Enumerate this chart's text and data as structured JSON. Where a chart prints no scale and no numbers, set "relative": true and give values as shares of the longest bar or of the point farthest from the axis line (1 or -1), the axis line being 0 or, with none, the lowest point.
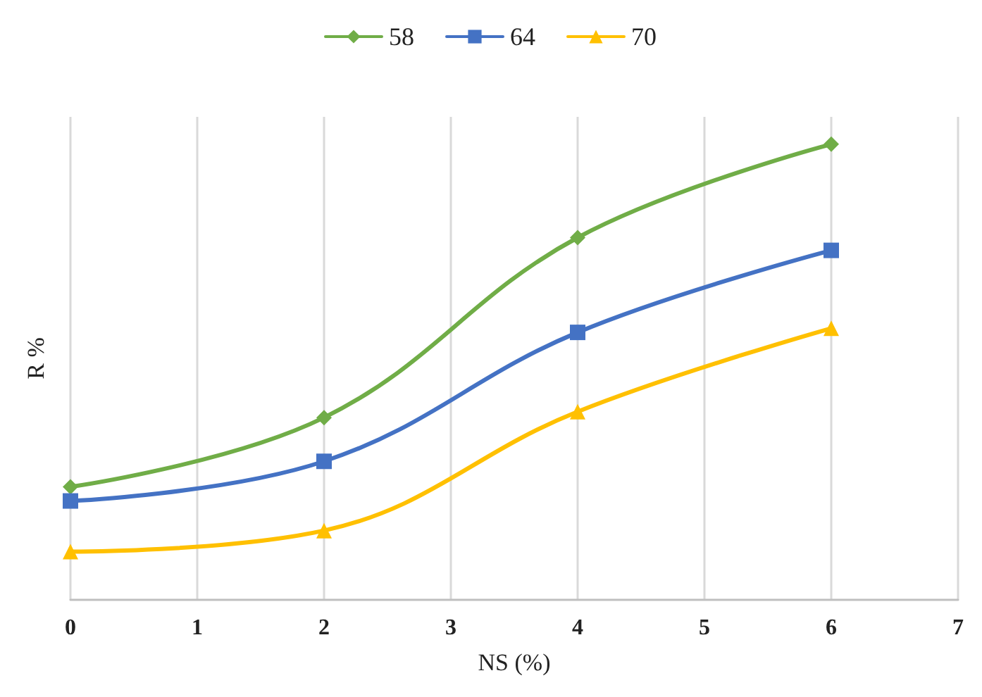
{
  "chart_data": {
    "type": "line",
    "xlabel": "NS (%)",
    "ylabel": "R %",
    "relative": true,
    "xlim": [
      0,
      7
    ],
    "xticks": [
      0,
      1,
      2,
      3,
      4,
      5,
      6,
      7
    ],
    "grid": "x",
    "legend": "top",
    "line_style": "solid",
    "series": [
      {
        "name": "58",
        "color": "#70ad47",
        "marker": "diamond",
        "x": [
          0,
          2,
          4,
          6
        ],
        "values": [
          0.248,
          0.4,
          0.795,
          1
        ]
      },
      {
        "name": "64",
        "color": "#4472c4",
        "marker": "square",
        "x": [
          0,
          2,
          4,
          6
        ],
        "values": [
          0.217,
          0.304,
          0.587,
          0.767
        ]
      },
      {
        "name": "70",
        "color": "#ffc000",
        "marker": "triangle",
        "x": [
          0,
          2,
          4,
          6
        ],
        "values": [
          0.106,
          0.152,
          0.413,
          0.596
        ]
      }
    ]
  }
}
